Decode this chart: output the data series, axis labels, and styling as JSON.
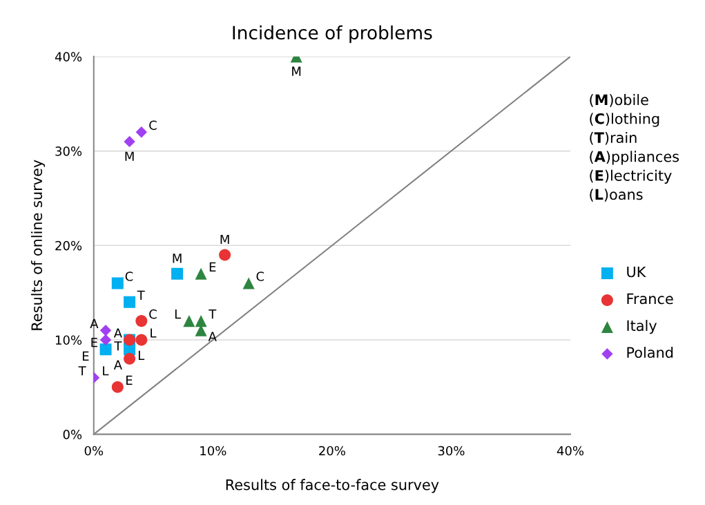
{
  "chart_data": {
    "type": "scatter",
    "title": "Incidence of problems",
    "xlabel": "Results of face-to-face survey",
    "ylabel": "Results of online survey",
    "xlim": [
      0,
      40
    ],
    "ylim": [
      0,
      40
    ],
    "xticks": [
      {
        "value": 0,
        "label": "0%"
      },
      {
        "value": 10,
        "label": "10%"
      },
      {
        "value": 20,
        "label": "20%"
      },
      {
        "value": 30,
        "label": "30%"
      },
      {
        "value": 40,
        "label": "40%"
      }
    ],
    "yticks": [
      {
        "value": 0,
        "label": "0%"
      },
      {
        "value": 10,
        "label": "10%"
      },
      {
        "value": 20,
        "label": "20%"
      },
      {
        "value": 30,
        "label": "30%"
      },
      {
        "value": 40,
        "label": "40%"
      }
    ],
    "grid": "y",
    "legend": "right",
    "annotations": [
      "(M)obile",
      "(C)lothing",
      "(T)rain",
      "(A)ppliances",
      "(E)lectricity",
      "(L)oans"
    ],
    "series": [
      {
        "name": "UK",
        "color": "#00b0f0",
        "marker": "square",
        "x": [
          7,
          2,
          3,
          3,
          1,
          3
        ],
        "values": [
          17,
          16,
          14,
          10,
          9,
          9
        ],
        "value_labels": [
          "M",
          "C",
          "T",
          "A",
          "E",
          "L"
        ]
      },
      {
        "name": "France",
        "color": "#e83434",
        "marker": "circle",
        "x": [
          11,
          4,
          3,
          4,
          3,
          2
        ],
        "values": [
          19,
          12,
          10,
          10,
          8,
          5
        ],
        "value_labels": [
          "M",
          "C",
          "T",
          "L",
          "A",
          "E"
        ]
      },
      {
        "name": "Italy",
        "color": "#2e8540",
        "marker": "triangle",
        "x": [
          17,
          9,
          13,
          8,
          9,
          9
        ],
        "values": [
          40,
          17,
          16,
          12,
          12,
          11
        ],
        "value_labels": [
          "M",
          "E",
          "C",
          "L",
          "T",
          "A"
        ]
      },
      {
        "name": "Poland",
        "color": "#a040f0",
        "marker": "diamond",
        "x": [
          4,
          3,
          1,
          1,
          0,
          0
        ],
        "values": [
          32,
          31,
          11,
          10,
          6,
          6
        ],
        "value_labels": [
          "C",
          "M",
          "A",
          "E",
          "L",
          "T"
        ]
      },
      {
        "type": "line",
        "color": "#808080",
        "x": [
          0,
          40
        ],
        "values": [
          0,
          40
        ]
      }
    ]
  }
}
